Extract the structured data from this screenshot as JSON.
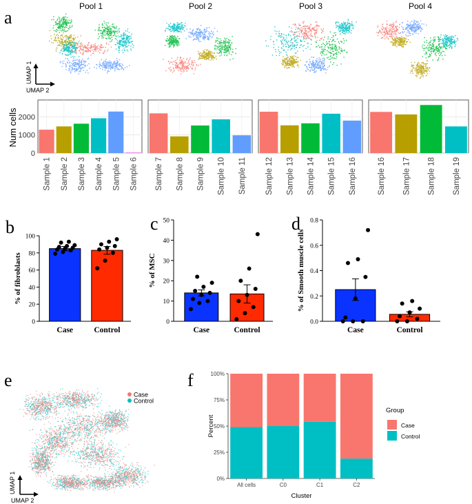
{
  "panel_letters": {
    "a": "a",
    "b": "b",
    "c": "c",
    "d": "d",
    "e": "e",
    "f": "f"
  },
  "umap_axis": {
    "y": "UMAP 1",
    "x": "UMAP 2"
  },
  "pools": [
    "Pool 1",
    "Pool 2",
    "Pool 3",
    "Pool 4"
  ],
  "sample_colors": [
    "#F8766D",
    "#B79F00",
    "#00BA38",
    "#00BFC4",
    "#619CFF",
    "#F564E3"
  ],
  "chart_data": [
    {
      "type": "bar",
      "id": "num-cells",
      "ylabel": "Num cells",
      "yticks": [
        0,
        1000,
        2000
      ],
      "ylim": [
        0,
        2700
      ],
      "grid": true,
      "facets": [
        {
          "name": "Pool 1",
          "categories": [
            "Sample 1",
            "Sample 2",
            "Sample 3",
            "Sample 4",
            "Sample 5",
            "Sample 6"
          ],
          "values": [
            1290,
            1470,
            1620,
            1920,
            2290,
            30
          ]
        },
        {
          "name": "Pool 2",
          "categories": [
            "Sample 7",
            "Sample 8",
            "Sample 9",
            "Sample 10",
            "Sample 11"
          ],
          "values": [
            2190,
            920,
            1520,
            1860,
            980
          ]
        },
        {
          "name": "Pool 3",
          "categories": [
            "Sample 12",
            "Sample 13",
            "Sample 14",
            "Sample 15",
            "Sample 16"
          ],
          "values": [
            2280,
            1530,
            1640,
            2170,
            1790
          ]
        },
        {
          "name": "Pool 4",
          "categories": [
            "Sample 16",
            "Sample 17",
            "Sample 18",
            "Sample 19"
          ],
          "values": [
            2270,
            2130,
            2650,
            1470
          ]
        }
      ]
    },
    {
      "type": "bar",
      "id": "fibroblasts",
      "ylabel": "% of fibroblasts",
      "categories": [
        "Case",
        "Control"
      ],
      "values": [
        85,
        83
      ],
      "errors": [
        2.5,
        4.5
      ],
      "ylim": [
        0,
        100
      ],
      "yticks": [
        0,
        20,
        40,
        60,
        80,
        100
      ],
      "colors": [
        "#0a33ff",
        "#ff2a00"
      ],
      "points": [
        [
          79,
          81,
          83,
          84,
          85,
          86,
          87,
          88,
          89,
          92,
          93
        ],
        [
          62,
          71,
          80,
          84,
          86,
          88,
          90,
          93,
          96
        ]
      ]
    },
    {
      "type": "bar",
      "id": "msc",
      "ylabel": "% of MSC",
      "categories": [
        "Case",
        "Control"
      ],
      "values": [
        14,
        13.5
      ],
      "errors": [
        1.5,
        4.5
      ],
      "ylim": [
        0,
        50
      ],
      "yticks": [
        0,
        10,
        20,
        30,
        40,
        50
      ],
      "colors": [
        "#0a33ff",
        "#ff2a00"
      ],
      "points": [
        [
          6,
          9,
          10,
          11,
          13,
          14,
          15,
          17,
          19,
          22
        ],
        [
          1,
          4,
          7,
          10,
          13,
          16,
          20,
          26,
          43
        ]
      ]
    },
    {
      "type": "bar",
      "id": "smooth-muscle",
      "ylabel": "% of Smooth muscle cells",
      "categories": [
        "Case",
        "Control"
      ],
      "values": [
        0.25,
        0.055
      ],
      "errors": [
        0.085,
        0.02
      ],
      "ylim": [
        0,
        0.8
      ],
      "yticks": [
        0.0,
        0.2,
        0.4,
        0.6,
        0.8
      ],
      "colors": [
        "#0a33ff",
        "#ff2a00"
      ],
      "points": [
        [
          0.0,
          0.0,
          0.0,
          0.03,
          0.18,
          0.35,
          0.46,
          0.49,
          0.72
        ],
        [
          0.0,
          0.0,
          0.02,
          0.04,
          0.07,
          0.1,
          0.14,
          0.16
        ]
      ]
    },
    {
      "type": "bar",
      "id": "group-percent",
      "stacked": true,
      "xlabel": "Cluster",
      "ylabel": "Percent",
      "categories": [
        "All cells",
        "C0",
        "C1",
        "C2"
      ],
      "yticks": [
        "0%",
        "25%",
        "50%",
        "75%",
        "100%"
      ],
      "legend_title": "Group",
      "series": [
        {
          "name": "Control",
          "values": [
            0.49,
            0.5,
            0.54,
            0.19
          ],
          "color": "#00BFC4"
        },
        {
          "name": "Case",
          "values": [
            0.51,
            0.5,
            0.46,
            0.81
          ],
          "color": "#F8766D"
        }
      ],
      "legend": [
        "Case",
        "Control"
      ]
    }
  ],
  "legend_e": [
    {
      "label": "Case",
      "color": "#F8766D"
    },
    {
      "label": "Control",
      "color": "#00BFC4"
    }
  ]
}
